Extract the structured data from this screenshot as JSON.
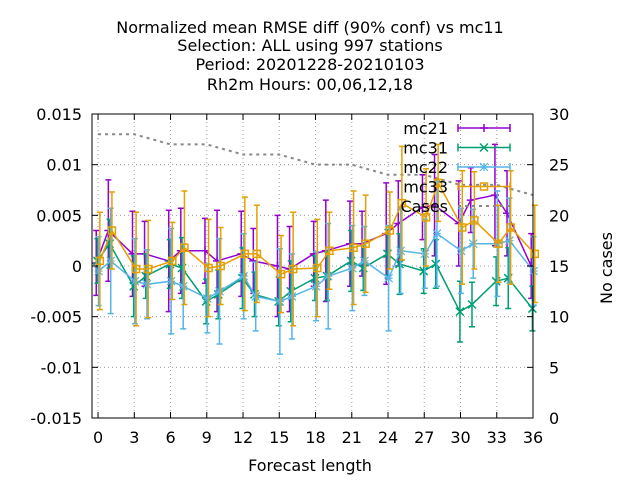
{
  "chart_data": {
    "type": "line",
    "title_lines": [
      "Normalized mean RMSE diff (90% conf) vs mc11",
      "Selection: ALL using   997 stations",
      "Period: 20201228-20210103",
      "Rh2m   Hours:  00,06,12,18"
    ],
    "xlabel": "Forecast length",
    "ylabel": "",
    "y2label": "No cases",
    "xlim": [
      -0.5,
      36
    ],
    "ylim": [
      -0.015,
      0.015
    ],
    "y2lim": [
      0,
      30
    ],
    "x_ticks": [
      0,
      3,
      6,
      9,
      12,
      15,
      18,
      21,
      24,
      27,
      30,
      33,
      36
    ],
    "y_ticks": [
      {
        "v": 0.015,
        "label": "0.015"
      },
      {
        "v": 0.01,
        "label": "0.01"
      },
      {
        "v": 0.005,
        "label": "0.005"
      },
      {
        "v": 0,
        "label": "0"
      },
      {
        "v": -0.005,
        "label": "-0.005"
      },
      {
        "v": -0.01,
        "label": "-0.01"
      },
      {
        "v": -0.015,
        "label": "-0.015"
      }
    ],
    "y2_ticks": [
      0,
      5,
      10,
      15,
      20,
      25,
      30
    ],
    "grid": true,
    "legend_position": "top-right",
    "x": [
      0,
      1,
      3,
      4,
      6,
      7,
      9,
      10,
      12,
      13,
      15,
      16,
      18,
      19,
      21,
      22,
      24,
      25,
      27,
      28,
      30,
      31,
      33,
      34,
      36
    ],
    "series": [
      {
        "name": "mc21",
        "color": "#9400d3",
        "marker": "plus",
        "values": [
          0.0003,
          0.0035,
          0.0012,
          0.0012,
          0.0005,
          0.0015,
          0.0015,
          0.0005,
          0.0012,
          0.0005,
          0.0,
          -0.0003,
          0.0012,
          0.0015,
          0.0022,
          0.0022,
          0.0032,
          0.0042,
          0.0058,
          0.006,
          0.0042,
          0.0065,
          0.007,
          0.0052,
          0.0
        ]
      },
      {
        "name": "mc31",
        "color": "#009e73",
        "marker": "x",
        "values": [
          0.0005,
          0.0022,
          -0.002,
          -0.001,
          0.0002,
          -0.0002,
          -0.0035,
          -0.0028,
          -0.0012,
          -0.0028,
          -0.0035,
          -0.0025,
          -0.0012,
          -0.001,
          0.0005,
          -0.0002,
          0.0012,
          0.0002,
          -0.0005,
          0.0002,
          -0.0045,
          -0.0038,
          -0.0015,
          -0.0012,
          -0.0042
        ]
      },
      {
        "name": "mc22",
        "color": "#56b4e9",
        "marker": "star",
        "values": [
          -0.0005,
          0.0005,
          -0.0015,
          -0.0018,
          -0.0015,
          -0.002,
          -0.0032,
          -0.0025,
          -0.001,
          -0.003,
          -0.0035,
          -0.003,
          -0.002,
          -0.001,
          -0.0002,
          0.0005,
          -0.0012,
          0.0015,
          0.0012,
          0.0032,
          0.0015,
          0.0022,
          0.0022,
          0.0025,
          -0.0005
        ]
      },
      {
        "name": "mc33",
        "color": "#e69f00",
        "marker": "square",
        "values": [
          0.0005,
          0.0035,
          -0.0003,
          -0.0003,
          0.0005,
          0.0018,
          -0.0002,
          0.0,
          0.0012,
          0.0012,
          -0.0008,
          -0.0003,
          -0.0002,
          0.0015,
          0.0018,
          0.0022,
          0.0035,
          0.0062,
          0.0048,
          0.0082,
          0.0038,
          0.0045,
          0.0022,
          0.0038,
          0.0012
        ]
      }
    ],
    "cases": {
      "name": "Cases",
      "color": "#888888",
      "x": [
        0,
        3,
        6,
        9,
        12,
        15,
        18,
        21,
        24,
        27,
        30,
        33,
        36
      ],
      "values": [
        28,
        28,
        27,
        27,
        26,
        26,
        25,
        25,
        24,
        24,
        23,
        23,
        22
      ]
    }
  }
}
